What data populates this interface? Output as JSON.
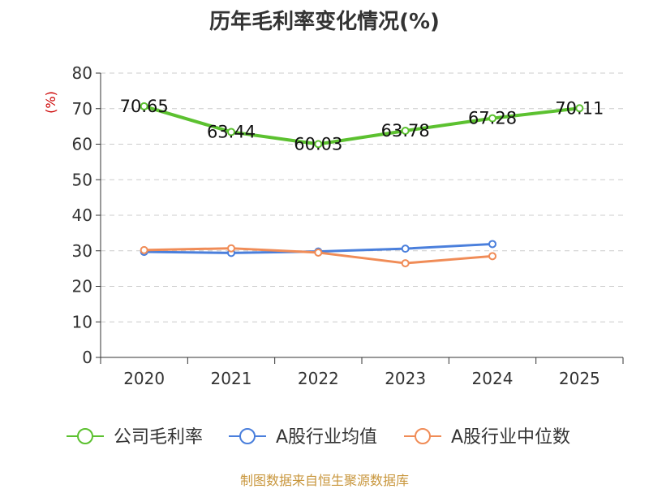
{
  "chart_data": {
    "type": "line",
    "title": "历年毛利率变化情况(%)",
    "ylabel": "(%)",
    "categories": [
      "2020",
      "2021",
      "2022",
      "2023",
      "2024",
      "2025"
    ],
    "ylim": [
      0,
      80
    ],
    "yticks": [
      0,
      10,
      20,
      30,
      40,
      50,
      60,
      70,
      80
    ],
    "grid": true,
    "legend_position": "bottom",
    "series": [
      {
        "name": "公司毛利率",
        "color": "#5cc130",
        "values": [
          70.65,
          63.44,
          60.03,
          63.78,
          67.28,
          70.11
        ],
        "labels": [
          "70.65",
          "63.44",
          "60.03",
          "63.78",
          "67.28",
          "70.11"
        ]
      },
      {
        "name": "A股行业均值",
        "color": "#4a7fdc",
        "values": [
          29.7,
          29.4,
          29.8,
          30.6,
          31.9,
          null
        ]
      },
      {
        "name": "A股行业中位数",
        "color": "#f08c57",
        "values": [
          30.2,
          30.7,
          29.5,
          26.5,
          28.5,
          null
        ]
      }
    ]
  },
  "source": "制图数据来自恒生聚源数据库"
}
